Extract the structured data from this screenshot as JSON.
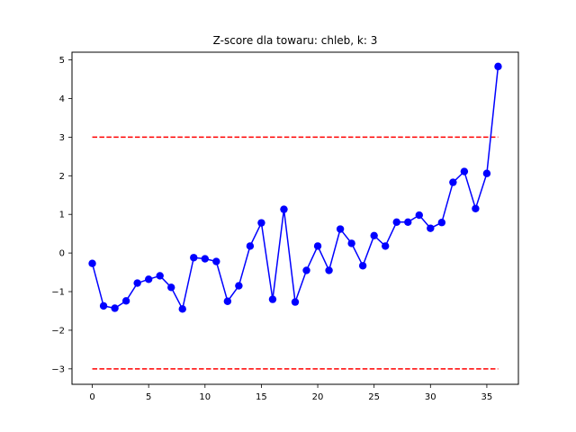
{
  "chart_data": {
    "type": "line",
    "title": "Z-score dla towaru: chleb, k: 3",
    "xlabel": "",
    "ylabel": "",
    "xlim": [
      -1.8,
      37.8
    ],
    "ylim": [
      -3.4,
      5.2
    ],
    "xticks": [
      0,
      5,
      10,
      15,
      20,
      25,
      30,
      35
    ],
    "yticks": [
      -3,
      -2,
      -1,
      0,
      1,
      2,
      3,
      4,
      5
    ],
    "grid": false,
    "series": [
      {
        "color": "#0000ff",
        "marker": "circle",
        "x": [
          0,
          1,
          2,
          3,
          4,
          5,
          6,
          7,
          8,
          9,
          10,
          11,
          12,
          13,
          14,
          15,
          16,
          17,
          18,
          19,
          20,
          21,
          22,
          23,
          24,
          25,
          26,
          27,
          28,
          29,
          30,
          31,
          32,
          33,
          34,
          35,
          36
        ],
        "values": [
          -0.27,
          -1.37,
          -1.43,
          -1.24,
          -0.78,
          -0.68,
          -0.59,
          -0.89,
          -1.45,
          -0.12,
          -0.15,
          -0.22,
          -1.25,
          -0.85,
          0.18,
          0.78,
          -1.2,
          1.13,
          -1.27,
          -0.45,
          0.18,
          -0.45,
          0.62,
          0.25,
          -0.33,
          0.45,
          0.18,
          0.8,
          0.8,
          0.98,
          0.64,
          0.79,
          1.83,
          2.11,
          1.15,
          2.06,
          4.83
        ]
      }
    ],
    "thresholds": [
      {
        "y": 3,
        "color": "#ff0000",
        "style": "dashed",
        "x_from": 0,
        "x_to": 36
      },
      {
        "y": -3,
        "color": "#ff0000",
        "style": "dashed",
        "x_from": 0,
        "x_to": 36
      }
    ]
  }
}
